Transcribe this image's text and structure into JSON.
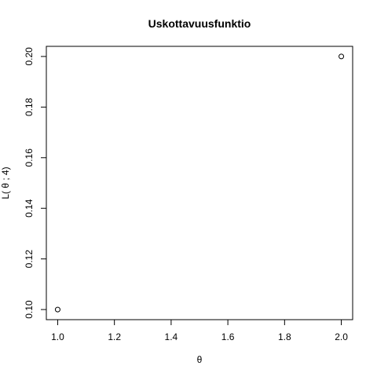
{
  "chart_data": {
    "type": "scatter",
    "title": "Uskottavuusfunktio",
    "xlabel": "θ",
    "ylabel": "L( θ ; 4)",
    "x": [
      1,
      2
    ],
    "y": [
      0.1,
      0.2
    ],
    "xlim": [
      0.96,
      2.04
    ],
    "ylim": [
      0.096,
      0.204
    ],
    "xticks": [
      1.0,
      1.2,
      1.4,
      1.6,
      1.8,
      2.0
    ],
    "xtick_labels": [
      "1.0",
      "1.2",
      "1.4",
      "1.6",
      "1.8",
      "2.0"
    ],
    "yticks": [
      0.1,
      0.12,
      0.14,
      0.16,
      0.18,
      0.2
    ],
    "ytick_labels": [
      "0.10",
      "0.12",
      "0.14",
      "0.16",
      "0.18",
      "0.20"
    ],
    "marker": "open-circle",
    "grid": false,
    "colors": {
      "axis": "#000000",
      "points": "#000000",
      "background": "#ffffff"
    }
  }
}
